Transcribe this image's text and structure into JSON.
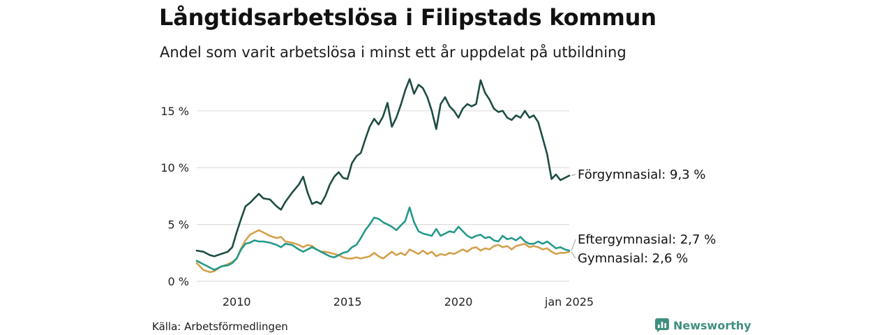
{
  "header": {
    "title": "Långtidsarbetslösa i Filipstads kommun",
    "subtitle": "Andel som varit arbetslösa i minst ett år uppdelat på utbildning"
  },
  "footer": {
    "source": "Källa: Arbetsförmedlingen",
    "brand": "Newsworthy",
    "brand_icon": "bar-chart-icon"
  },
  "colors": {
    "forgymnasial": "#1d4c44",
    "eftergymnasial": "#24998a",
    "gymnasial": "#d4a04c",
    "grid": "#dddddd"
  },
  "chart_data": {
    "type": "line",
    "title": "Långtidsarbetslösa i Filipstads kommun",
    "subtitle": "Andel som varit arbetslösa i minst ett år uppdelat på utbildning",
    "xlabel": "",
    "ylabel": "",
    "xlim": [
      2008.2,
      2025.0
    ],
    "ylim": [
      0,
      18
    ],
    "yticks": [
      0,
      5,
      10,
      15
    ],
    "ytick_labels": [
      "0 %",
      "5 %",
      "10 %",
      "15 %"
    ],
    "xticks": [
      2010,
      2015,
      2020,
      2025
    ],
    "xtick_labels": [
      "2010",
      "2015",
      "2020",
      "jan 2025"
    ],
    "grid": true,
    "series": [
      {
        "name": "Förgymnasial",
        "label": "Förgymnasial: 9,3 %",
        "color_key": "forgymnasial",
        "x": [
          2008.2,
          2008.5,
          2008.8,
          2009.0,
          2009.3,
          2009.6,
          2009.8,
          2010.0,
          2010.2,
          2010.4,
          2010.6,
          2010.8,
          2011.0,
          2011.2,
          2011.5,
          2011.8,
          2012.0,
          2012.2,
          2012.5,
          2012.8,
          2013.0,
          2013.2,
          2013.4,
          2013.6,
          2013.8,
          2014.0,
          2014.2,
          2014.4,
          2014.6,
          2014.8,
          2015.0,
          2015.2,
          2015.4,
          2015.6,
          2015.8,
          2016.0,
          2016.2,
          2016.4,
          2016.6,
          2016.8,
          2017.0,
          2017.2,
          2017.4,
          2017.6,
          2017.8,
          2018.0,
          2018.2,
          2018.4,
          2018.6,
          2018.8,
          2019.0,
          2019.2,
          2019.4,
          2019.6,
          2019.8,
          2020.0,
          2020.2,
          2020.4,
          2020.6,
          2020.8,
          2021.0,
          2021.2,
          2021.4,
          2021.6,
          2021.8,
          2022.0,
          2022.2,
          2022.4,
          2022.6,
          2022.8,
          2023.0,
          2023.2,
          2023.4,
          2023.6,
          2023.8,
          2024.0,
          2024.2,
          2024.4,
          2024.6,
          2024.8,
          2025.0
        ],
        "values": [
          2.7,
          2.6,
          2.3,
          2.2,
          2.4,
          2.6,
          3.0,
          4.3,
          5.5,
          6.6,
          6.9,
          7.3,
          7.7,
          7.3,
          7.2,
          6.6,
          6.3,
          7.0,
          7.8,
          8.5,
          9.2,
          7.8,
          6.8,
          7.0,
          6.8,
          7.5,
          8.5,
          9.2,
          9.6,
          9.1,
          9.0,
          10.4,
          11.0,
          11.3,
          12.5,
          13.6,
          14.3,
          13.8,
          14.5,
          15.7,
          13.6,
          14.4,
          15.5,
          16.8,
          17.8,
          16.5,
          17.3,
          17.0,
          16.2,
          15.0,
          13.4,
          15.6,
          16.2,
          15.4,
          15.0,
          14.4,
          15.2,
          15.6,
          15.4,
          15.6,
          17.7,
          16.6,
          16.0,
          15.2,
          14.9,
          15.0,
          14.4,
          14.2,
          14.6,
          14.4,
          15.0,
          14.4,
          14.6,
          14.0,
          12.6,
          11.2,
          9.0,
          9.4,
          8.9,
          9.1,
          9.3
        ]
      },
      {
        "name": "Eftergymnasial",
        "label": "Eftergymnasial: 2,7 %",
        "color_key": "eftergymnasial",
        "x": [
          2008.2,
          2008.5,
          2008.8,
          2009.0,
          2009.3,
          2009.6,
          2009.8,
          2010.0,
          2010.2,
          2010.4,
          2010.6,
          2010.8,
          2011.0,
          2011.2,
          2011.5,
          2011.8,
          2012.0,
          2012.2,
          2012.5,
          2012.8,
          2013.0,
          2013.2,
          2013.4,
          2013.6,
          2013.8,
          2014.0,
          2014.2,
          2014.4,
          2014.6,
          2014.8,
          2015.0,
          2015.2,
          2015.4,
          2015.6,
          2015.8,
          2016.0,
          2016.2,
          2016.4,
          2016.6,
          2016.8,
          2017.0,
          2017.2,
          2017.4,
          2017.6,
          2017.8,
          2018.0,
          2018.2,
          2018.4,
          2018.6,
          2018.8,
          2019.0,
          2019.2,
          2019.4,
          2019.6,
          2019.8,
          2020.0,
          2020.2,
          2020.4,
          2020.6,
          2020.8,
          2021.0,
          2021.2,
          2021.4,
          2021.6,
          2021.8,
          2022.0,
          2022.2,
          2022.4,
          2022.6,
          2022.8,
          2023.0,
          2023.2,
          2023.4,
          2023.6,
          2023.8,
          2024.0,
          2024.2,
          2024.4,
          2024.6,
          2024.8,
          2025.0
        ],
        "values": [
          1.8,
          1.5,
          1.2,
          1.0,
          1.3,
          1.4,
          1.6,
          2.0,
          2.8,
          3.3,
          3.4,
          3.6,
          3.5,
          3.5,
          3.4,
          3.2,
          3.0,
          3.3,
          3.2,
          2.8,
          2.6,
          2.8,
          3.0,
          2.8,
          2.6,
          2.4,
          2.2,
          2.1,
          2.3,
          2.5,
          2.6,
          3.0,
          3.2,
          3.8,
          4.5,
          5.0,
          5.6,
          5.5,
          5.2,
          5.0,
          4.8,
          4.5,
          4.9,
          5.3,
          6.5,
          5.2,
          4.4,
          4.2,
          4.1,
          4.0,
          4.6,
          4.0,
          4.2,
          4.4,
          4.3,
          4.8,
          4.4,
          4.0,
          3.8,
          4.0,
          4.1,
          3.8,
          3.9,
          3.6,
          3.5,
          4.0,
          3.7,
          3.8,
          3.6,
          3.9,
          3.5,
          3.3,
          3.3,
          3.5,
          3.3,
          3.5,
          3.2,
          2.9,
          3.0,
          2.8,
          2.7
        ]
      },
      {
        "name": "Gymnasial",
        "label": "Gymnasial: 2,6 %",
        "color_key": "gymnasial",
        "x": [
          2008.2,
          2008.5,
          2008.8,
          2009.0,
          2009.3,
          2009.6,
          2009.8,
          2010.0,
          2010.2,
          2010.4,
          2010.6,
          2010.8,
          2011.0,
          2011.2,
          2011.5,
          2011.8,
          2012.0,
          2012.2,
          2012.5,
          2012.8,
          2013.0,
          2013.2,
          2013.4,
          2013.6,
          2013.8,
          2014.0,
          2014.2,
          2014.4,
          2014.6,
          2014.8,
          2015.0,
          2015.2,
          2015.4,
          2015.6,
          2015.8,
          2016.0,
          2016.2,
          2016.4,
          2016.6,
          2016.8,
          2017.0,
          2017.2,
          2017.4,
          2017.6,
          2017.8,
          2018.0,
          2018.2,
          2018.4,
          2018.6,
          2018.8,
          2019.0,
          2019.2,
          2019.4,
          2019.6,
          2019.8,
          2020.0,
          2020.2,
          2020.4,
          2020.6,
          2020.8,
          2021.0,
          2021.2,
          2021.4,
          2021.6,
          2021.8,
          2022.0,
          2022.2,
          2022.4,
          2022.6,
          2022.8,
          2023.0,
          2023.2,
          2023.4,
          2023.6,
          2023.8,
          2024.0,
          2024.2,
          2024.4,
          2024.6,
          2024.8,
          2025.0
        ],
        "values": [
          1.6,
          1.0,
          0.8,
          0.9,
          1.3,
          1.5,
          1.7,
          2.0,
          2.9,
          3.6,
          4.1,
          4.3,
          4.5,
          4.3,
          4.0,
          3.8,
          3.9,
          3.5,
          3.4,
          3.2,
          3.0,
          3.2,
          3.1,
          2.8,
          2.6,
          2.6,
          2.5,
          2.4,
          2.3,
          2.1,
          2.0,
          2.0,
          2.1,
          2.0,
          2.1,
          2.2,
          2.5,
          2.2,
          2.0,
          2.3,
          2.6,
          2.3,
          2.5,
          2.3,
          2.8,
          2.6,
          2.4,
          2.7,
          2.4,
          2.6,
          2.2,
          2.4,
          2.3,
          2.5,
          2.4,
          2.6,
          2.8,
          2.6,
          2.9,
          3.0,
          2.7,
          2.9,
          2.8,
          3.1,
          3.2,
          3.0,
          3.1,
          2.8,
          3.1,
          3.2,
          3.3,
          3.0,
          3.1,
          3.0,
          2.8,
          2.9,
          2.6,
          2.4,
          2.5,
          2.5,
          2.6
        ]
      }
    ]
  }
}
